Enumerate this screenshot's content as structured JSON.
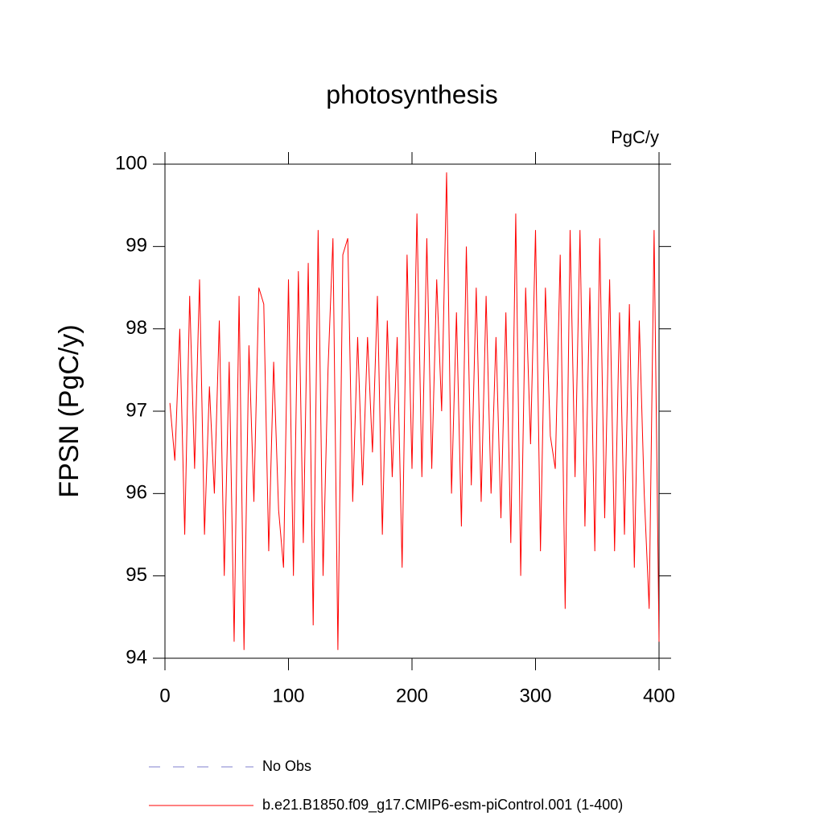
{
  "chart_data": {
    "type": "line",
    "title": "photosynthesis",
    "units": "PgC/y",
    "y_label": "FPSN  (PgC/y)",
    "x": [
      4,
      8,
      12,
      16,
      20,
      24,
      28,
      32,
      36,
      40,
      44,
      48,
      52,
      56,
      60,
      64,
      68,
      72,
      76,
      80,
      84,
      88,
      92,
      96,
      100,
      104,
      108,
      112,
      116,
      120,
      124,
      128,
      132,
      136,
      140,
      144,
      148,
      152,
      156,
      160,
      164,
      168,
      172,
      176,
      180,
      184,
      188,
      192,
      196,
      200,
      204,
      208,
      212,
      216,
      220,
      224,
      228,
      232,
      236,
      240,
      244,
      248,
      252,
      256,
      260,
      264,
      268,
      272,
      276,
      280,
      284,
      288,
      292,
      296,
      300,
      304,
      308,
      312,
      316,
      320,
      324,
      328,
      332,
      336,
      340,
      344,
      348,
      352,
      356,
      360,
      364,
      368,
      372,
      376,
      380,
      384,
      388,
      392,
      396,
      400
    ],
    "series": [
      {
        "name": "b.e21.B1850.f09_g17.CMIP6-esm-piControl.001 (1-400)",
        "color": "#ff0000",
        "values": [
          97.1,
          96.4,
          98.0,
          95.5,
          98.4,
          96.3,
          98.6,
          95.5,
          97.3,
          96.0,
          98.1,
          95.0,
          97.6,
          94.2,
          98.4,
          94.1,
          97.8,
          95.9,
          98.5,
          98.3,
          95.3,
          97.6,
          95.8,
          95.1,
          98.6,
          95.0,
          98.7,
          95.4,
          98.8,
          94.4,
          99.2,
          95.0,
          97.5,
          99.1,
          94.1,
          98.9,
          99.1,
          95.9,
          97.9,
          96.1,
          97.9,
          96.5,
          98.4,
          95.5,
          98.1,
          96.2,
          97.9,
          95.1,
          98.9,
          96.3,
          99.4,
          96.2,
          99.1,
          96.3,
          98.6,
          97.0,
          99.9,
          96.0,
          98.2,
          95.6,
          99.0,
          96.1,
          98.5,
          95.9,
          98.4,
          96.0,
          97.9,
          95.7,
          98.2,
          95.4,
          99.4,
          95.0,
          98.5,
          96.6,
          99.2,
          95.3,
          98.5,
          96.7,
          96.3,
          98.9,
          94.6,
          99.2,
          96.2,
          99.2,
          95.6,
          98.5,
          95.3,
          99.1,
          95.7,
          98.6,
          95.3,
          98.2,
          95.5,
          98.3,
          95.1,
          98.1,
          96.0,
          94.6,
          99.2,
          94.2
        ]
      }
    ],
    "other_legend_entries": [
      {
        "name": "No Obs",
        "color": "#7f7fcc",
        "dash": "dashed"
      }
    ],
    "xlim": [
      0,
      400
    ],
    "xticks": [
      0,
      100,
      200,
      300,
      400
    ],
    "ylim": [
      94,
      100
    ],
    "yticks": [
      94,
      95,
      96,
      97,
      98,
      99,
      100
    ]
  }
}
